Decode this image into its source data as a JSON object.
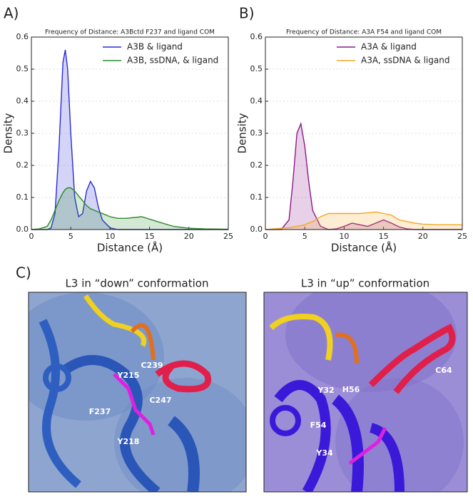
{
  "chart_data": [
    {
      "type": "line",
      "panel_label": "A)",
      "title": "Frequency of Distance: A3Bctd F237 and ligand COM",
      "x_label": "Distance (Å)",
      "y_label": "Density",
      "x": [
        0,
        1,
        2,
        2.5,
        3,
        3.5,
        4,
        4.3,
        4.6,
        5,
        5.5,
        6,
        6.5,
        7,
        7.5,
        8,
        8.5,
        9,
        10,
        11,
        12,
        14,
        16,
        18,
        20,
        22,
        25
      ],
      "series": [
        {
          "name": "A3B & ligand",
          "color": "#2a2ad8",
          "values": [
            0,
            0,
            0,
            0.005,
            0.05,
            0.25,
            0.52,
            0.56,
            0.5,
            0.3,
            0.1,
            0.04,
            0.05,
            0.12,
            0.15,
            0.13,
            0.07,
            0.03,
            0.005,
            0,
            0,
            0,
            0,
            0,
            0,
            0,
            0
          ]
        },
        {
          "name": "A3B, ssDNA, & ligand",
          "color": "#2a8a2a",
          "values": [
            0,
            0.002,
            0.01,
            0.03,
            0.06,
            0.09,
            0.115,
            0.125,
            0.13,
            0.13,
            0.12,
            0.105,
            0.09,
            0.075,
            0.065,
            0.06,
            0.055,
            0.05,
            0.04,
            0.035,
            0.035,
            0.04,
            0.025,
            0.01,
            0.004,
            0.002,
            0.001
          ]
        }
      ],
      "xlim": [
        0,
        25
      ],
      "ylim": [
        0,
        0.6
      ],
      "xticks": [
        0,
        5,
        10,
        15,
        20,
        25
      ],
      "yticks": [
        {
          "value": 0,
          "label": "0.0"
        },
        0.1,
        0.2,
        0.3,
        0.4,
        0.5,
        0.6
      ],
      "grid": true,
      "legend": "upper right"
    },
    {
      "type": "line",
      "panel_label": "B)",
      "title": "Frequency of Distance: A3A F54 and ligand COM",
      "x_label": "Distance (Å)",
      "y_label": "Density",
      "x": [
        0,
        1,
        2,
        3,
        3.5,
        4,
        4.5,
        5,
        5.5,
        6,
        7,
        8,
        9,
        10,
        11,
        12,
        13,
        14,
        15,
        16,
        17,
        18,
        19,
        20,
        22,
        25
      ],
      "series": [
        {
          "name": "A3A & ligand",
          "color": "#8a1a8a",
          "values": [
            0,
            0,
            0,
            0.03,
            0.15,
            0.3,
            0.33,
            0.26,
            0.15,
            0.06,
            0.01,
            0,
            0.002,
            0.01,
            0.02,
            0.015,
            0.01,
            0.02,
            0.03,
            0.02,
            0.008,
            0.002,
            0,
            0,
            0,
            0
          ]
        },
        {
          "name": "A3A, ssDNA & ligand",
          "color": "#f5a623",
          "values": [
            0,
            0.002,
            0.004,
            0.006,
            0.008,
            0.01,
            0.012,
            0.015,
            0.02,
            0.025,
            0.04,
            0.05,
            0.05,
            0.05,
            0.05,
            0.05,
            0.052,
            0.055,
            0.05,
            0.045,
            0.03,
            0.025,
            0.02,
            0.017,
            0.015,
            0.015
          ]
        }
      ],
      "xlim": [
        0,
        25
      ],
      "ylim": [
        0,
        0.6
      ],
      "xticks": [
        0,
        5,
        10,
        15,
        20,
        25
      ],
      "yticks": [
        {
          "value": 0,
          "label": "0.0"
        },
        0.1,
        0.2,
        0.3,
        0.4,
        0.5,
        0.6
      ],
      "grid": true,
      "legend": "upper right"
    }
  ],
  "panel_c": {
    "label": "C)",
    "images": [
      {
        "title": "L3 in “down” conformation",
        "labels": [
          "Y215",
          "C239",
          "C247",
          "F237",
          "Y218"
        ]
      },
      {
        "title": "L3 in “up” conformation",
        "labels": [
          "C64",
          "Y32",
          "H56",
          "F54",
          "Y34"
        ]
      }
    ]
  }
}
